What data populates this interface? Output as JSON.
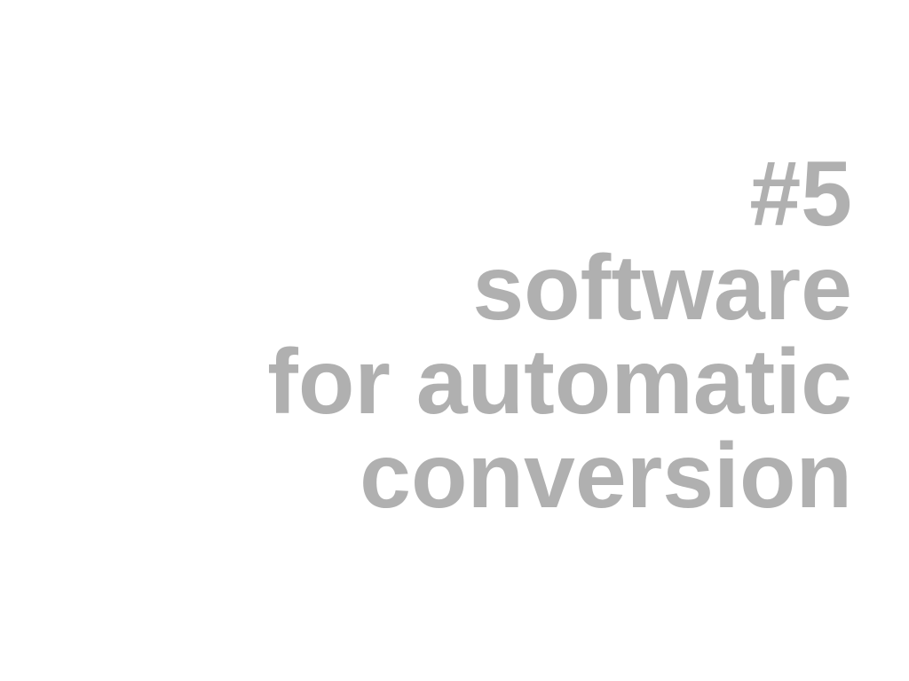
{
  "slide": {
    "lines": [
      "#5",
      "software",
      "for automatic",
      "conversion"
    ]
  },
  "colors": {
    "text": "#b0b0b0",
    "background": "#ffffff"
  }
}
